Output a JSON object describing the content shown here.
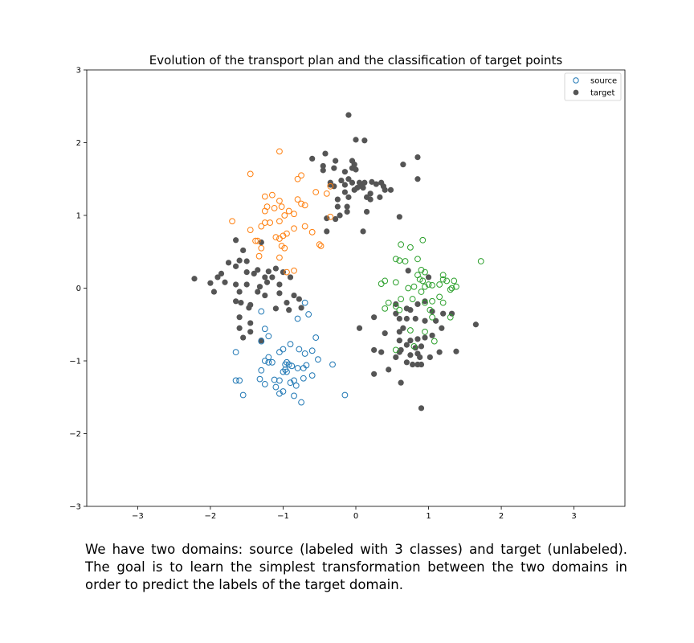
{
  "chart_data": {
    "type": "scatter",
    "title": "Evolution of the transport plan and the classification of target points",
    "xlim": [
      -3.7,
      3.7
    ],
    "ylim": [
      -3,
      3
    ],
    "xticks": [
      -3,
      -2,
      -1,
      0,
      1,
      2,
      3
    ],
    "yticks": [
      -3,
      -2,
      -1,
      0,
      1,
      2,
      3
    ],
    "xtick_labels": [
      "−3",
      "−2",
      "−1",
      "0",
      "1",
      "2",
      "3"
    ],
    "ytick_labels": [
      "−3",
      "−2",
      "−1",
      "0",
      "1",
      "2",
      "3"
    ],
    "grid": false,
    "legend": {
      "position": "top-right",
      "entries": [
        {
          "label": "source",
          "marker": "hollow-circle",
          "color": "#1f77b4"
        },
        {
          "label": "target",
          "marker": "filled-circle",
          "color": "#555555"
        }
      ]
    },
    "source_classes": [
      {
        "color": "#1f77b4",
        "points": [
          [
            -1.3,
            -0.32
          ],
          [
            -1.25,
            -0.56
          ],
          [
            -1.2,
            -0.66
          ],
          [
            -1.3,
            -0.73
          ],
          [
            -0.8,
            -0.42
          ],
          [
            -0.7,
            -0.2
          ],
          [
            -0.65,
            -0.36
          ],
          [
            -0.55,
            -0.68
          ],
          [
            -0.6,
            -0.86
          ],
          [
            -0.7,
            -0.9
          ],
          [
            -0.78,
            -0.84
          ],
          [
            -0.9,
            -0.77
          ],
          [
            -1.0,
            -0.84
          ],
          [
            -1.05,
            -0.88
          ],
          [
            -1.2,
            -0.95
          ],
          [
            -1.25,
            -1.0
          ],
          [
            -1.2,
            -1.02
          ],
          [
            -1.15,
            -1.02
          ],
          [
            -0.95,
            -1.02
          ],
          [
            -0.92,
            -1.05
          ],
          [
            -0.97,
            -1.05
          ],
          [
            -0.88,
            -1.07
          ],
          [
            -0.8,
            -1.1
          ],
          [
            -0.72,
            -1.1
          ],
          [
            -0.68,
            -1.06
          ],
          [
            -0.52,
            -0.98
          ],
          [
            -0.32,
            -1.05
          ],
          [
            -1.0,
            -1.15
          ],
          [
            -0.95,
            -1.15
          ],
          [
            -0.97,
            -1.12
          ],
          [
            -1.65,
            -0.88
          ],
          [
            -1.3,
            -1.13
          ],
          [
            -1.32,
            -1.25
          ],
          [
            -1.12,
            -1.26
          ],
          [
            -1.05,
            -1.27
          ],
          [
            -0.85,
            -1.27
          ],
          [
            -0.72,
            -1.24
          ],
          [
            -0.6,
            -1.2
          ],
          [
            -1.65,
            -1.27
          ],
          [
            -1.6,
            -1.27
          ],
          [
            -1.55,
            -1.47
          ],
          [
            -1.25,
            -1.32
          ],
          [
            -1.1,
            -1.36
          ],
          [
            -1.0,
            -1.42
          ],
          [
            -0.9,
            -1.3
          ],
          [
            -0.82,
            -1.34
          ],
          [
            -1.05,
            -1.45
          ],
          [
            -0.85,
            -1.48
          ],
          [
            -0.75,
            -1.57
          ],
          [
            -0.15,
            -1.47
          ]
        ]
      },
      {
        "color": "#ff7f0e",
        "points": [
          [
            -1.05,
            1.88
          ],
          [
            -1.45,
            1.57
          ],
          [
            -0.75,
            1.55
          ],
          [
            -0.8,
            1.5
          ],
          [
            -1.25,
            1.26
          ],
          [
            -1.15,
            1.28
          ],
          [
            -1.05,
            1.2
          ],
          [
            -0.8,
            1.22
          ],
          [
            -0.75,
            1.16
          ],
          [
            -0.7,
            1.14
          ],
          [
            -0.55,
            1.32
          ],
          [
            -0.4,
            1.3
          ],
          [
            -0.35,
            1.4
          ],
          [
            -1.22,
            1.12
          ],
          [
            -1.12,
            1.1
          ],
          [
            -1.25,
            1.06
          ],
          [
            -1.02,
            1.12
          ],
          [
            -0.98,
            1.0
          ],
          [
            -0.92,
            1.06
          ],
          [
            -0.85,
            1.02
          ],
          [
            -1.7,
            0.92
          ],
          [
            -1.25,
            0.9
          ],
          [
            -1.18,
            0.9
          ],
          [
            -1.05,
            0.92
          ],
          [
            -1.3,
            0.85
          ],
          [
            -1.45,
            0.8
          ],
          [
            -1.35,
            0.65
          ],
          [
            -1.38,
            0.65
          ],
          [
            -1.1,
            0.7
          ],
          [
            -1.05,
            0.68
          ],
          [
            -1.0,
            0.72
          ],
          [
            -0.95,
            0.75
          ],
          [
            -0.85,
            0.82
          ],
          [
            -0.7,
            0.85
          ],
          [
            -0.6,
            0.77
          ],
          [
            -0.35,
            0.98
          ],
          [
            -0.5,
            0.6
          ],
          [
            -0.48,
            0.58
          ],
          [
            -1.3,
            0.55
          ],
          [
            -1.02,
            0.58
          ],
          [
            -0.98,
            0.55
          ],
          [
            -1.33,
            0.44
          ],
          [
            -1.05,
            0.42
          ],
          [
            -0.85,
            0.24
          ],
          [
            -0.95,
            0.22
          ]
        ]
      },
      {
        "color": "#2ca02c",
        "points": [
          [
            0.62,
            0.6
          ],
          [
            0.75,
            0.56
          ],
          [
            0.92,
            0.66
          ],
          [
            1.72,
            0.37
          ],
          [
            0.55,
            0.4
          ],
          [
            0.6,
            0.38
          ],
          [
            0.68,
            0.37
          ],
          [
            0.85,
            0.4
          ],
          [
            0.9,
            0.25
          ],
          [
            0.95,
            0.22
          ],
          [
            0.85,
            0.18
          ],
          [
            0.88,
            0.12
          ],
          [
            1.0,
            0.05
          ],
          [
            0.92,
            0.1
          ],
          [
            0.72,
            0.0
          ],
          [
            0.8,
            0.02
          ],
          [
            0.9,
            -0.05
          ],
          [
            0.95,
            0.02
          ],
          [
            1.05,
            0.04
          ],
          [
            1.15,
            0.05
          ],
          [
            1.2,
            0.12
          ],
          [
            1.25,
            0.1
          ],
          [
            1.35,
            0.1
          ],
          [
            1.38,
            0.02
          ],
          [
            1.3,
            -0.02
          ],
          [
            1.32,
            0.0
          ],
          [
            0.4,
            0.1
          ],
          [
            0.35,
            0.06
          ],
          [
            0.55,
            0.08
          ],
          [
            0.45,
            -0.2
          ],
          [
            0.55,
            -0.25
          ],
          [
            0.62,
            -0.15
          ],
          [
            0.6,
            -0.3
          ],
          [
            0.78,
            -0.15
          ],
          [
            0.95,
            -0.2
          ],
          [
            1.05,
            -0.18
          ],
          [
            1.15,
            -0.12
          ],
          [
            1.2,
            -0.2
          ],
          [
            0.4,
            -0.28
          ],
          [
            1.02,
            -0.3
          ],
          [
            1.3,
            -0.4
          ],
          [
            0.75,
            -0.58
          ],
          [
            0.95,
            -0.6
          ],
          [
            1.08,
            -0.73
          ],
          [
            0.8,
            -0.8
          ],
          [
            0.55,
            -0.85
          ],
          [
            1.05,
            -0.4
          ],
          [
            1.2,
            0.18
          ]
        ]
      }
    ],
    "target_points": [
      [
        -0.1,
        2.38
      ],
      [
        0.0,
        2.04
      ],
      [
        0.12,
        2.03
      ],
      [
        0.85,
        1.8
      ],
      [
        -0.42,
        1.85
      ],
      [
        -0.6,
        1.78
      ],
      [
        -0.28,
        1.75
      ],
      [
        -0.45,
        1.68
      ],
      [
        -0.3,
        1.65
      ],
      [
        -0.45,
        1.62
      ],
      [
        -0.05,
        1.75
      ],
      [
        -0.02,
        1.7
      ],
      [
        -0.05,
        1.65
      ],
      [
        0.0,
        1.63
      ],
      [
        -0.15,
        1.6
      ],
      [
        -0.1,
        1.5
      ],
      [
        -0.2,
        1.48
      ],
      [
        -0.05,
        1.45
      ],
      [
        -0.35,
        1.45
      ],
      [
        -0.35,
        1.42
      ],
      [
        -0.3,
        1.4
      ],
      [
        -0.15,
        1.42
      ],
      [
        0.05,
        1.45
      ],
      [
        0.08,
        1.4
      ],
      [
        0.12,
        1.45
      ],
      [
        0.22,
        1.46
      ],
      [
        0.28,
        1.43
      ],
      [
        0.35,
        1.45
      ],
      [
        0.38,
        1.4
      ],
      [
        0.48,
        1.35
      ],
      [
        0.4,
        1.35
      ],
      [
        0.2,
        1.3
      ],
      [
        -0.02,
        1.35
      ],
      [
        0.02,
        1.38
      ],
      [
        0.1,
        1.38
      ],
      [
        0.15,
        1.25
      ],
      [
        0.2,
        1.22
      ],
      [
        0.33,
        1.25
      ],
      [
        0.65,
        1.7
      ],
      [
        0.85,
        1.5
      ],
      [
        -0.25,
        1.12
      ],
      [
        -0.12,
        1.12
      ],
      [
        -0.12,
        1.05
      ],
      [
        -0.22,
        1.0
      ],
      [
        -0.28,
        0.95
      ],
      [
        -0.4,
        0.96
      ],
      [
        -0.1,
        1.25
      ],
      [
        -0.15,
        1.32
      ],
      [
        -0.25,
        1.22
      ],
      [
        0.15,
        1.05
      ],
      [
        0.1,
        0.78
      ],
      [
        0.6,
        0.98
      ],
      [
        -0.4,
        0.78
      ],
      [
        -1.65,
        0.66
      ],
      [
        -1.55,
        0.52
      ],
      [
        -1.6,
        0.38
      ],
      [
        -1.75,
        0.35
      ],
      [
        -1.65,
        0.3
      ],
      [
        -1.5,
        0.37
      ],
      [
        -1.3,
        0.63
      ],
      [
        -1.35,
        0.25
      ],
      [
        -1.4,
        0.2
      ],
      [
        -1.5,
        0.22
      ],
      [
        -1.5,
        0.05
      ],
      [
        -1.2,
        0.23
      ],
      [
        -1.1,
        0.27
      ],
      [
        -1.0,
        0.22
      ],
      [
        -1.85,
        0.2
      ],
      [
        -1.9,
        0.15
      ],
      [
        -1.8,
        0.08
      ],
      [
        -1.95,
        -0.05
      ],
      [
        -2.0,
        0.07
      ],
      [
        -1.65,
        0.05
      ],
      [
        -1.6,
        -0.05
      ],
      [
        -1.25,
        0.15
      ],
      [
        -1.15,
        0.15
      ],
      [
        -1.22,
        0.08
      ],
      [
        -1.05,
        0.05
      ],
      [
        -0.9,
        0.15
      ],
      [
        -2.22,
        0.13
      ],
      [
        -1.35,
        -0.05
      ],
      [
        -1.25,
        -0.1
      ],
      [
        -1.05,
        -0.07
      ],
      [
        -0.85,
        -0.1
      ],
      [
        -0.78,
        -0.15
      ],
      [
        -1.65,
        -0.18
      ],
      [
        -1.58,
        -0.2
      ],
      [
        -1.45,
        -0.23
      ],
      [
        -1.47,
        -0.27
      ],
      [
        -1.1,
        -0.28
      ],
      [
        -0.92,
        -0.3
      ],
      [
        -0.75,
        -0.27
      ],
      [
        -1.6,
        -0.4
      ],
      [
        -1.45,
        -0.48
      ],
      [
        -1.6,
        -0.55
      ],
      [
        -1.45,
        -0.6
      ],
      [
        -1.55,
        -0.68
      ],
      [
        -1.3,
        -0.72
      ],
      [
        -0.95,
        -0.2
      ],
      [
        -1.32,
        0.02
      ],
      [
        0.72,
        0.24
      ],
      [
        0.55,
        -0.22
      ],
      [
        0.7,
        -0.28
      ],
      [
        0.75,
        -0.3
      ],
      [
        0.85,
        -0.22
      ],
      [
        0.95,
        -0.18
      ],
      [
        1.05,
        -0.32
      ],
      [
        1.2,
        -0.35
      ],
      [
        1.32,
        -0.35
      ],
      [
        0.55,
        -0.35
      ],
      [
        0.6,
        -0.42
      ],
      [
        0.7,
        -0.42
      ],
      [
        0.82,
        -0.42
      ],
      [
        0.95,
        -0.45
      ],
      [
        1.1,
        -0.45
      ],
      [
        1.18,
        -0.55
      ],
      [
        1.05,
        -0.65
      ],
      [
        0.95,
        -0.68
      ],
      [
        0.85,
        -0.7
      ],
      [
        0.75,
        -0.72
      ],
      [
        0.6,
        -0.6
      ],
      [
        0.4,
        -0.62
      ],
      [
        0.25,
        -0.4
      ],
      [
        0.05,
        -0.55
      ],
      [
        1.65,
        -0.5
      ],
      [
        0.6,
        -0.72
      ],
      [
        0.7,
        -0.78
      ],
      [
        0.9,
        -0.8
      ],
      [
        1.15,
        -0.88
      ],
      [
        0.35,
        -0.88
      ],
      [
        0.25,
        -0.85
      ],
      [
        0.6,
        -0.88
      ],
      [
        0.62,
        -0.85
      ],
      [
        0.75,
        -0.92
      ],
      [
        0.85,
        -0.9
      ],
      [
        0.88,
        -0.95
      ],
      [
        1.02,
        -0.95
      ],
      [
        1.38,
        -0.87
      ],
      [
        0.55,
        -0.95
      ],
      [
        0.7,
        -1.02
      ],
      [
        0.78,
        -1.05
      ],
      [
        0.85,
        -1.05
      ],
      [
        0.9,
        -1.05
      ],
      [
        0.45,
        -1.12
      ],
      [
        0.25,
        -1.18
      ],
      [
        0.62,
        -1.3
      ],
      [
        0.9,
        -1.65
      ],
      [
        0.82,
        -0.82
      ],
      [
        0.65,
        -0.55
      ],
      [
        1.0,
        0.15
      ]
    ]
  },
  "caption": "We have two domains: source (labeled with 3 classes) and target (unlabeled). The goal is to learn the simplest transformation between the two domains in order to predict the labels of the target domain."
}
